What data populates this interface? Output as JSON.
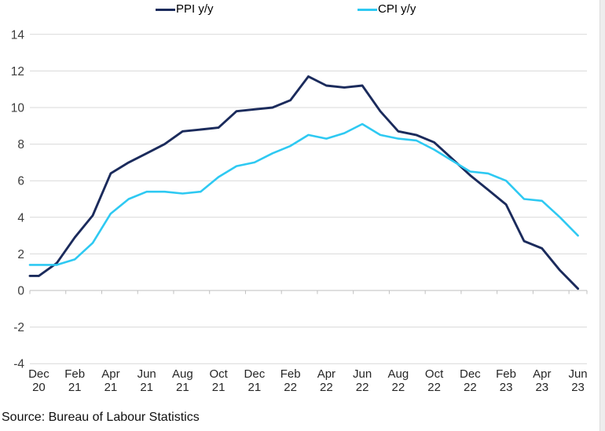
{
  "legend": [
    {
      "id": "ppi",
      "label": "PPI y/y",
      "color": "#1b2b5c"
    },
    {
      "id": "cpi",
      "label": "CPI y/y",
      "color": "#2ec9f2"
    }
  ],
  "source": "Source: Bureau of Labour Statistics",
  "colors": {
    "ppi_line": "#1b2b5c",
    "cpi_line": "#2ec9f2",
    "gridline": "#d9d9d9",
    "axis_line": "#bfbfbf",
    "y_tick_text": "#3d3d3d",
    "x_tick_text": "#262626",
    "background": "#ffffff"
  },
  "chart_data": {
    "type": "line",
    "title": "",
    "xlabel": "",
    "ylabel": "",
    "grid": true,
    "legend_position": "top",
    "ylim": [
      -4,
      14
    ],
    "y_ticks": [
      -4,
      -2,
      0,
      2,
      4,
      6,
      8,
      10,
      12,
      14
    ],
    "x": [
      "Dec-20",
      "Jan-21",
      "Feb-21",
      "Mar-21",
      "Apr-21",
      "May-21",
      "Jun-21",
      "Jul-21",
      "Aug-21",
      "Sep-21",
      "Oct-21",
      "Nov-21",
      "Dec-21",
      "Jan-22",
      "Feb-22",
      "Mar-22",
      "Apr-22",
      "May-22",
      "Jun-22",
      "Jul-22",
      "Aug-22",
      "Sep-22",
      "Oct-22",
      "Nov-22",
      "Dec-22",
      "Jan-23",
      "Feb-23",
      "Mar-23",
      "Apr-23",
      "May-23",
      "Jun-23"
    ],
    "x_tick_labels": [
      [
        "Dec",
        "20"
      ],
      [
        "Feb",
        "21"
      ],
      [
        "Apr",
        "21"
      ],
      [
        "Jun",
        "21"
      ],
      [
        "Aug",
        "21"
      ],
      [
        "Oct",
        "21"
      ],
      [
        "Dec",
        "21"
      ],
      [
        "Feb",
        "22"
      ],
      [
        "Apr",
        "22"
      ],
      [
        "Jun",
        "22"
      ],
      [
        "Aug",
        "22"
      ],
      [
        "Oct",
        "22"
      ],
      [
        "Dec",
        "22"
      ],
      [
        "Feb",
        "23"
      ],
      [
        "Apr",
        "23"
      ],
      [
        "Jun",
        "23"
      ]
    ],
    "series": [
      {
        "name": "PPI y/y",
        "id": "ppi",
        "values": [
          0.8,
          1.5,
          2.9,
          4.1,
          6.4,
          7.0,
          7.5,
          8.0,
          8.7,
          8.8,
          8.9,
          9.8,
          9.9,
          10.0,
          10.4,
          11.7,
          11.2,
          11.1,
          11.2,
          9.8,
          8.7,
          8.5,
          8.1,
          7.2,
          6.3,
          5.5,
          4.7,
          2.7,
          2.3,
          1.1,
          0.1
        ]
      },
      {
        "name": "CPI y/y",
        "id": "cpi",
        "values": [
          1.4,
          1.4,
          1.7,
          2.6,
          4.2,
          5.0,
          5.4,
          5.4,
          5.3,
          5.4,
          6.2,
          6.8,
          7.0,
          7.5,
          7.9,
          8.5,
          8.3,
          8.6,
          9.1,
          8.5,
          8.3,
          8.2,
          7.7,
          7.1,
          6.5,
          6.4,
          6.0,
          5.0,
          4.9,
          4.0,
          3.0
        ]
      }
    ]
  }
}
